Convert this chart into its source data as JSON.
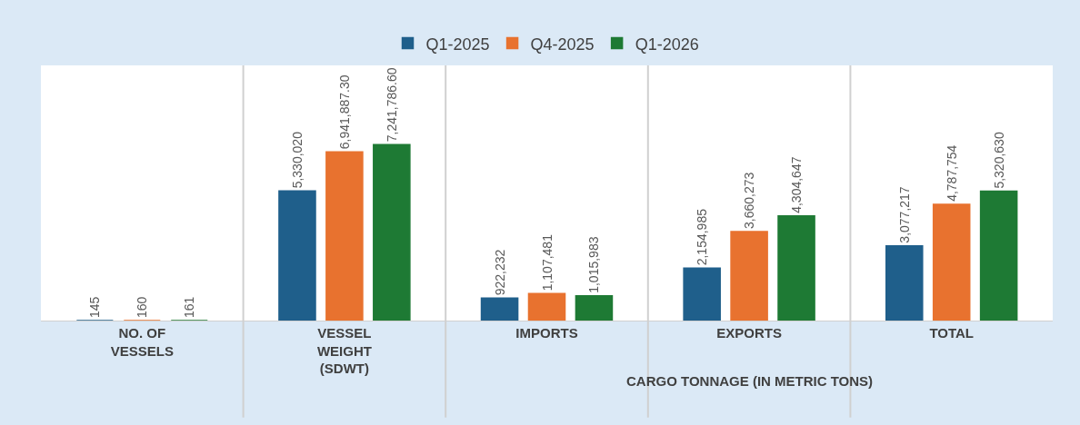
{
  "chart_data": {
    "type": "bar",
    "categories": [
      "NO. OF VESSELS",
      "VESSEL WEIGHT (SDWT)",
      "IMPORTS",
      "EXPORTS",
      "TOTAL"
    ],
    "series": [
      {
        "name": "Q1-2025",
        "color": "#1f5f8b",
        "values": [
          145,
          5330020,
          922232,
          2154985,
          3077217
        ],
        "value_labels": [
          "145",
          "5,330,020",
          "922,232",
          "2,154,985",
          "3,077,217"
        ]
      },
      {
        "name": "Q4-2025",
        "color": "#e8722f",
        "values": [
          160,
          6941887.3,
          1107481,
          3660273,
          4787754
        ],
        "value_labels": [
          "160",
          "6,941,887.30",
          "1,107,481",
          "3,660,273",
          "4,787,754"
        ]
      },
      {
        "name": "Q1-2026",
        "color": "#1e7a34",
        "values": [
          161,
          7241786.6,
          1015983,
          4304647,
          5320630
        ],
        "value_labels": [
          "161",
          "7,241,786.60",
          "1,015,983",
          "4,304,647",
          "5,320,630"
        ]
      }
    ],
    "annotations": [
      "CARGO TONNAGE (IN METRIC TONS)"
    ],
    "legend": "top"
  }
}
